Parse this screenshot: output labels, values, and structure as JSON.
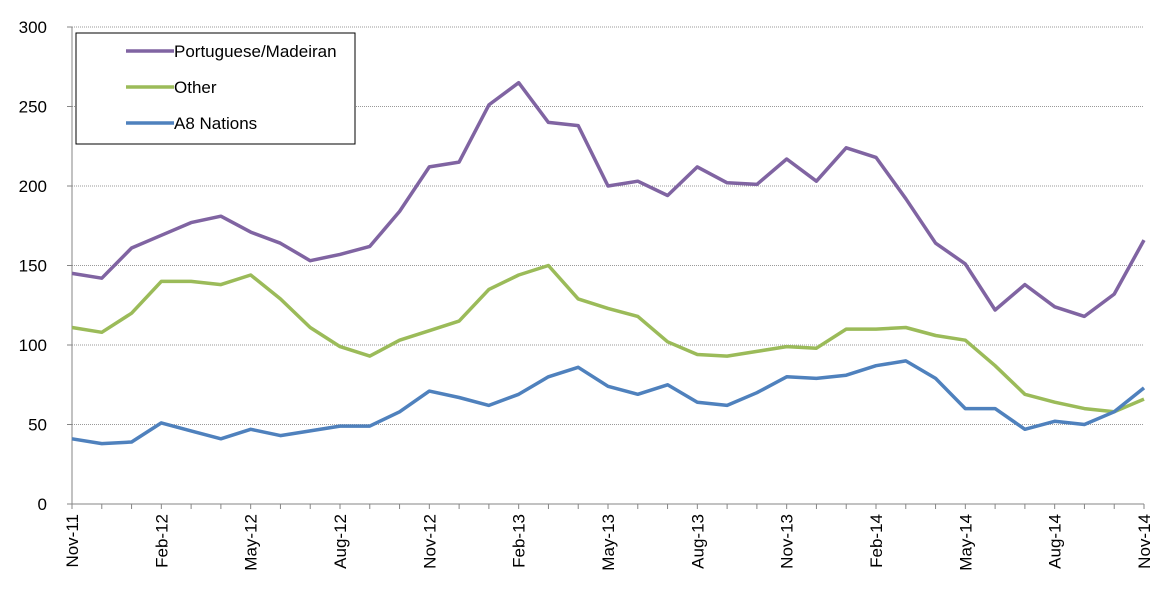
{
  "chart_data": {
    "type": "line",
    "categories": [
      "Nov-11",
      null,
      null,
      "Feb-12",
      null,
      null,
      "May-12",
      null,
      null,
      "Aug-12",
      null,
      null,
      "Nov-12",
      null,
      null,
      "Feb-13",
      null,
      null,
      "May-13",
      null,
      null,
      "Aug-13",
      null,
      null,
      "Nov-13",
      null,
      null,
      "Feb-14",
      null,
      null,
      "May-14",
      null,
      null,
      "Aug-14",
      null,
      null,
      "Nov-14"
    ],
    "series": [
      {
        "name": "Portuguese/Madeiran",
        "color": "#8064a2",
        "values": [
          145,
          142,
          161,
          169,
          177,
          181,
          171,
          164,
          153,
          157,
          162,
          184,
          212,
          215,
          251,
          265,
          240,
          238,
          200,
          203,
          194,
          212,
          202,
          201,
          217,
          203,
          224,
          218,
          192,
          164,
          151,
          122,
          138,
          124,
          118,
          132,
          166
        ]
      },
      {
        "name": "Other",
        "color": "#9bbb59",
        "values": [
          111,
          108,
          120,
          140,
          140,
          138,
          144,
          129,
          111,
          99,
          93,
          103,
          109,
          115,
          135,
          144,
          150,
          129,
          123,
          118,
          102,
          94,
          93,
          96,
          99,
          98,
          110,
          110,
          111,
          106,
          103,
          87,
          69,
          64,
          60,
          58,
          66
        ]
      },
      {
        "name": "A8 Nations",
        "color": "#4f81bd",
        "values": [
          41,
          38,
          39,
          51,
          46,
          41,
          47,
          43,
          46,
          49,
          49,
          58,
          71,
          67,
          62,
          69,
          80,
          86,
          74,
          69,
          75,
          64,
          62,
          70,
          80,
          79,
          81,
          87,
          90,
          79,
          60,
          60,
          47,
          52,
          50,
          58,
          73
        ]
      }
    ],
    "ylim": [
      0,
      300
    ],
    "yticks": [
      0,
      50,
      100,
      150,
      200,
      250,
      300
    ],
    "grid": true,
    "legend": "top-left"
  }
}
